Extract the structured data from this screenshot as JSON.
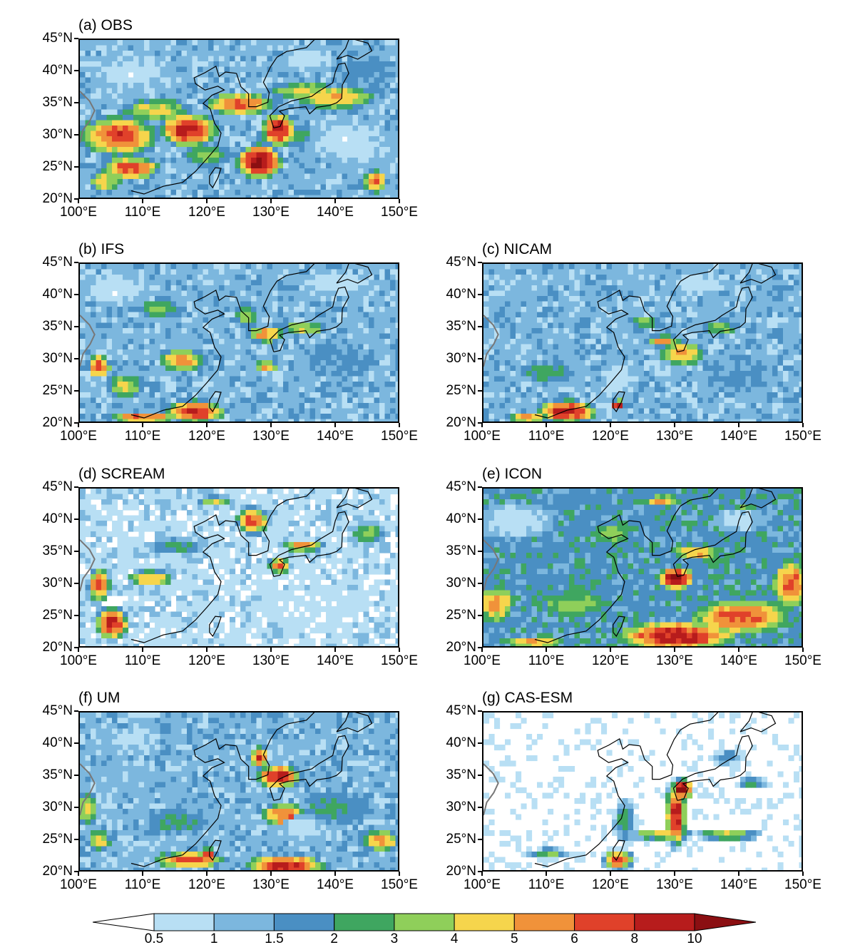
{
  "lat_ticks": [
    "45°N",
    "40°N",
    "35°N",
    "30°N",
    "25°N",
    "20°N"
  ],
  "lon_ticks": [
    "100°E",
    "110°E",
    "120°E",
    "130°E",
    "140°E",
    "150°E"
  ],
  "panels": [
    {
      "id": "a",
      "title": "(a) OBS",
      "pattern": "obs"
    },
    {
      "id": "b",
      "title": "(b) IFS",
      "pattern": "ifs"
    },
    {
      "id": "c",
      "title": "(c) NICAM",
      "pattern": "nicam"
    },
    {
      "id": "d",
      "title": "(d) SCREAM",
      "pattern": "scream"
    },
    {
      "id": "e",
      "title": "(e) ICON",
      "pattern": "icon"
    },
    {
      "id": "f",
      "title": "(f) UM",
      "pattern": "um"
    },
    {
      "id": "g",
      "title": "(g) CAS-ESM",
      "pattern": "casesm"
    }
  ],
  "colorbar": {
    "labels": [
      "0.5",
      "1",
      "1.5",
      "2",
      "3",
      "4",
      "5",
      "6",
      "8",
      "10"
    ],
    "colors": [
      "#ffffff",
      "#b8dff4",
      "#7cb7de",
      "#4a8fc3",
      "#3fa660",
      "#8fcf5a",
      "#f6d54c",
      "#f0923a",
      "#e0412a",
      "#b71c1c",
      "#8b0f12"
    ]
  }
}
